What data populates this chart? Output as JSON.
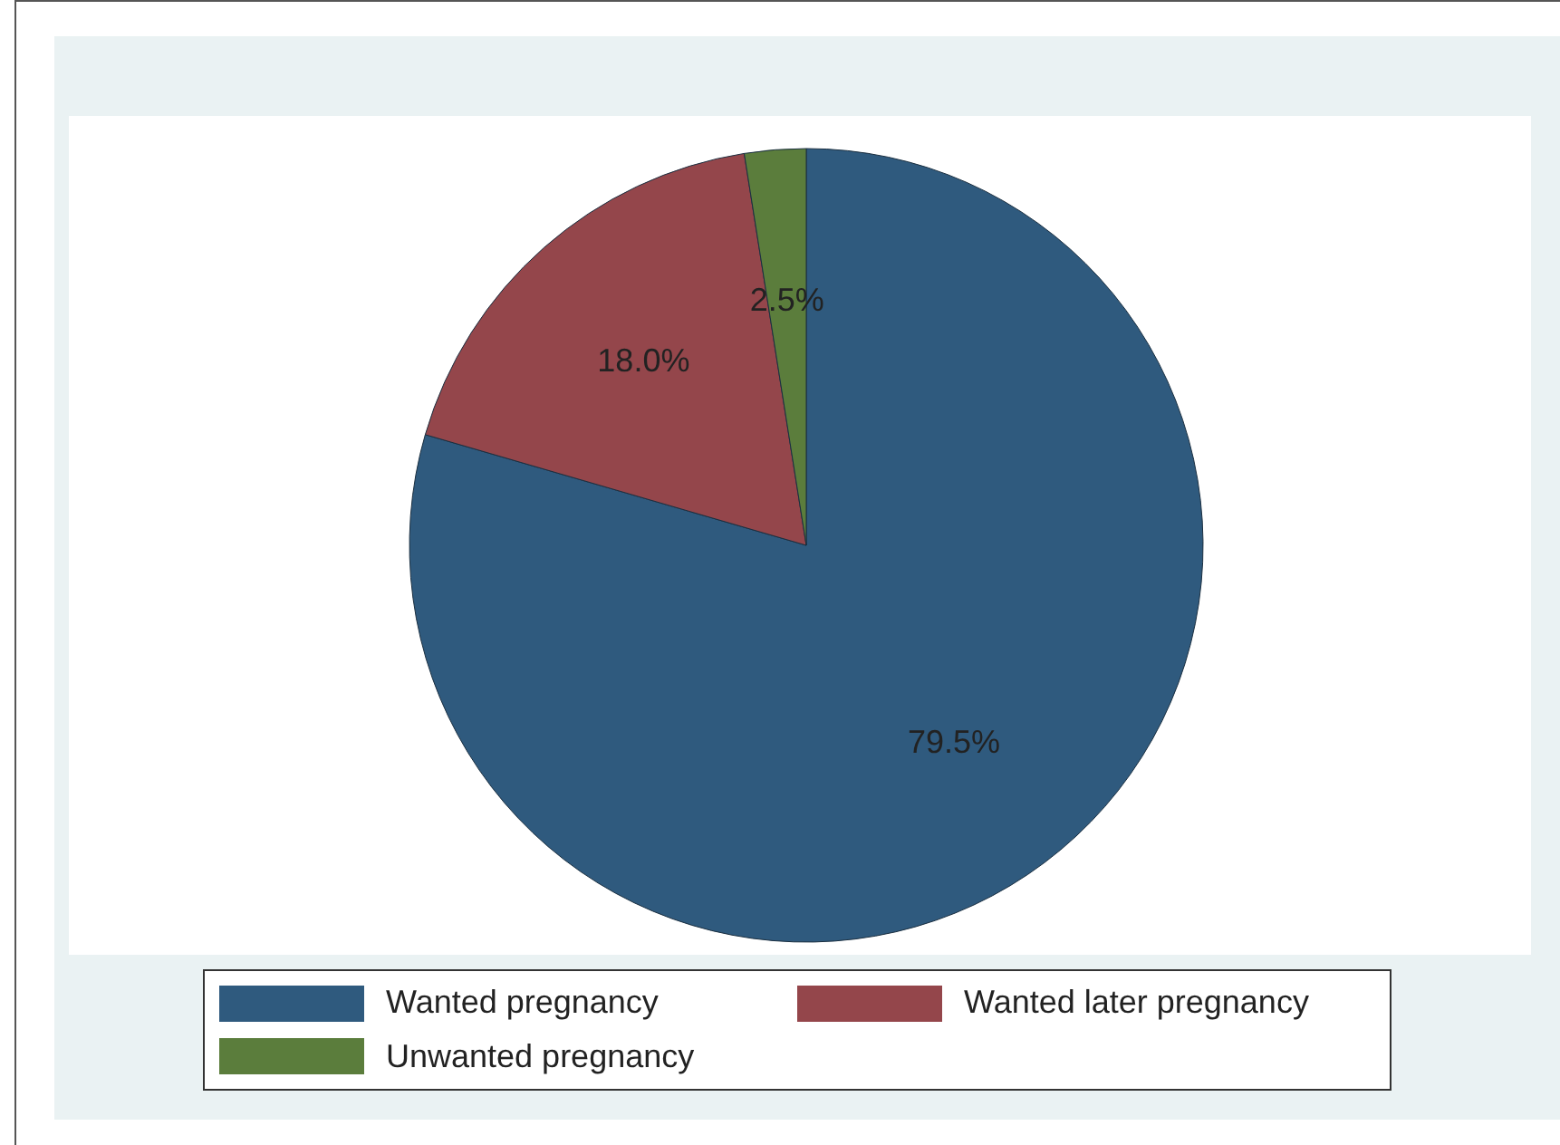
{
  "chart_data": {
    "type": "pie",
    "categories": [
      "Wanted pregnancy",
      "Wanted later pregnancy",
      "Unwanted pregnancy"
    ],
    "values": [
      79.5,
      18.0,
      2.5
    ],
    "colors": [
      "#2f5a7e",
      "#94464b",
      "#5b7d3c"
    ],
    "value_labels": [
      "79.5%",
      "18.0%",
      "2.5%"
    ],
    "legend": "bottom"
  }
}
